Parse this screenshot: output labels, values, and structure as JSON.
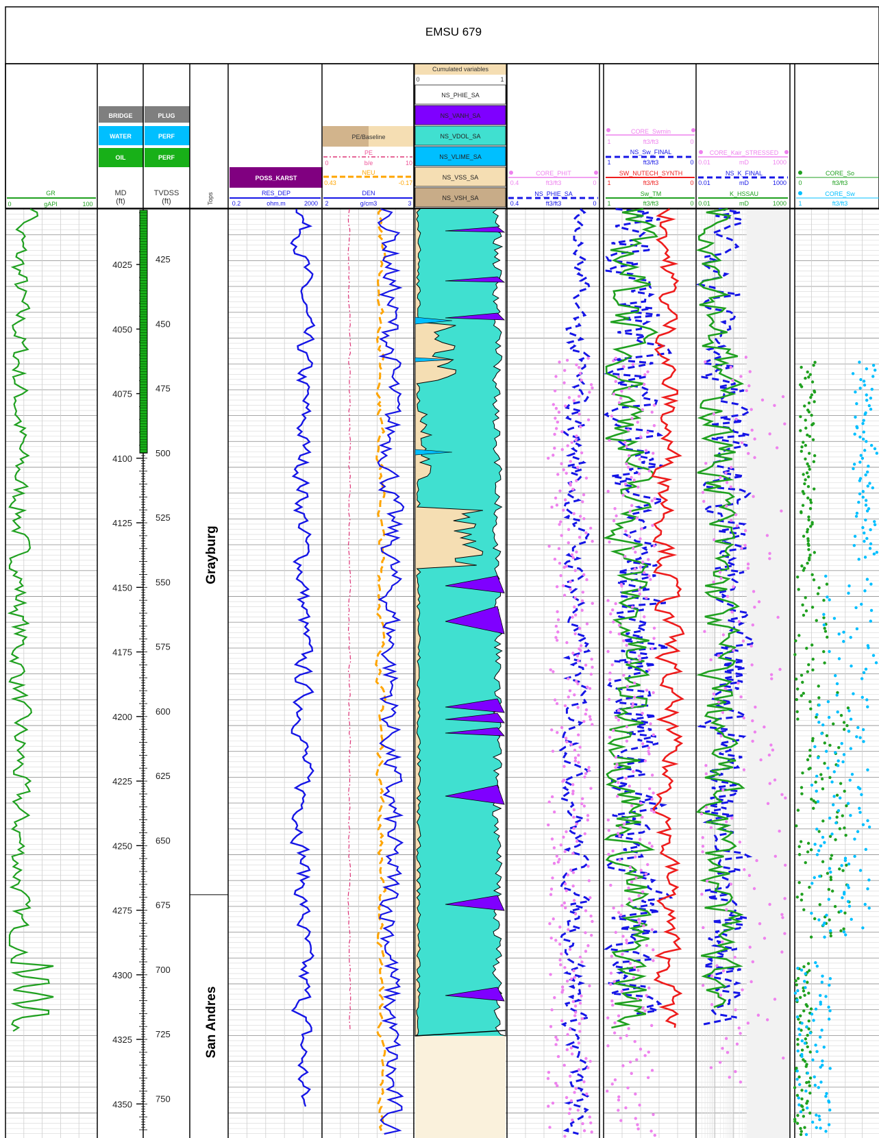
{
  "title": "EMSU 679",
  "colors": {
    "green": "#1fa01f",
    "blue": "#1515e6",
    "red": "#ee1c1c",
    "orange": "#ffa500",
    "violet": "#ee82ee",
    "purple": "#7f00ff",
    "turquoise": "#40e0d0",
    "sky": "#00bfff",
    "tan": "#f5deb3",
    "darkTan": "#d2b48c",
    "karst": "#800080"
  },
  "tracks": {
    "gr": {
      "name": "GR",
      "min": "0",
      "unit": "gAPI",
      "max": "100"
    },
    "md": {
      "name": "MD",
      "unit": "(ft)"
    },
    "tvdss": {
      "name": "TVDSS",
      "unit": "(ft)"
    },
    "tops": {
      "name": "Tops"
    },
    "res": {
      "name": "RES_DEP",
      "min": "0.2",
      "unit": "ohm.m",
      "max": "2000",
      "flag": "POSS_KARST"
    },
    "den": {
      "baseline_label": "PE/Baseline",
      "pe": {
        "name": "PE",
        "min": "0",
        "unit": "b/e",
        "max": "10"
      },
      "neu": {
        "name": "NEU",
        "min": "0.43",
        "max": "-0.17"
      },
      "den": {
        "name": "DEN",
        "min": "2",
        "unit": "g/cm3",
        "max": "3"
      }
    },
    "cum": {
      "title": "Cumulated variables",
      "min": "0",
      "max": "1",
      "items": [
        "NS_PHIE_SA",
        "NS_VANH_SA",
        "NS_VDOL_SA",
        "NS_VLIME_SA",
        "NS_VSS_SA",
        "NS_VSH_SA"
      ]
    },
    "phi": {
      "core": {
        "name": "CORE_PHIT",
        "min": "0.4",
        "unit": "ft3/ft3",
        "max": "0"
      },
      "ns": {
        "name": "NS_PHIE_SA",
        "min": "0.4",
        "unit": "ft3/ft3",
        "max": "0"
      }
    },
    "sw": {
      "core": {
        "name": "CORE_Swmin",
        "min": "1",
        "unit": "ft3/ft3",
        "max": "0"
      },
      "final": {
        "name": "NS_Sw_FINAL",
        "min": "1",
        "unit": "ft3/ft3",
        "max": "0"
      },
      "nutech": {
        "name": "SW_NUTECH_SYNTH",
        "min": "1",
        "unit": "ft3/ft3",
        "max": "0"
      },
      "tm": {
        "name": "Sw_TM",
        "min": "1",
        "unit": "ft3/ft3",
        "max": "0"
      }
    },
    "perm": {
      "core": {
        "name": "CORE_Kair_STRESSED",
        "min": "0.01",
        "unit": "mD",
        "max": "1000"
      },
      "final": {
        "name": "NS_K_FINAL",
        "min": "0.01",
        "unit": "mD",
        "max": "1000"
      },
      "hss": {
        "name": "K_HSSAU",
        "min": "0.01",
        "unit": "mD",
        "max": "1000"
      }
    },
    "so": {
      "so": {
        "name": "CORE_So",
        "min": "0",
        "unit": "ft3/ft3"
      },
      "sw": {
        "name": "CORE_Sw",
        "min": "1",
        "unit": "ft3/ft3"
      }
    }
  },
  "legend_md": [
    "BRIDGE",
    "WATER",
    "OIL"
  ],
  "legend_tvd": [
    "PLUG",
    "PERF",
    "PERF"
  ],
  "formations": [
    "Grayburg",
    "San Andres"
  ],
  "chart_data": {
    "type": "line",
    "title": "EMSU 679",
    "md_ticks": [
      4025,
      4050,
      4075,
      4100,
      4125,
      4150,
      4175,
      4200,
      4225,
      4250,
      4275,
      4300,
      4325,
      4350
    ],
    "tvdss_ticks": [
      425,
      450,
      475,
      500,
      525,
      550,
      575,
      600,
      625,
      650,
      675,
      700,
      725,
      750
    ],
    "md_range": [
      4003,
      4357
    ],
    "formation_tops": [
      {
        "name": "Grayburg",
        "md_top": 4003,
        "md_base": 4270
      },
      {
        "name": "San Andres",
        "md_top": 4270
      }
    ],
    "perforated_interval_md": [
      4004,
      4098
    ],
    "curves": [
      "GR",
      "RES_DEP",
      "PE",
      "NEU",
      "DEN",
      "NS_PHIE_SA",
      "CORE_PHIT",
      "NS_Sw_FINAL",
      "SW_NUTECH_SYNTH",
      "Sw_TM",
      "CORE_Swmin",
      "NS_K_FINAL",
      "K_HSSAU",
      "CORE_Kair_STRESSED",
      "CORE_So",
      "CORE_Sw"
    ]
  }
}
